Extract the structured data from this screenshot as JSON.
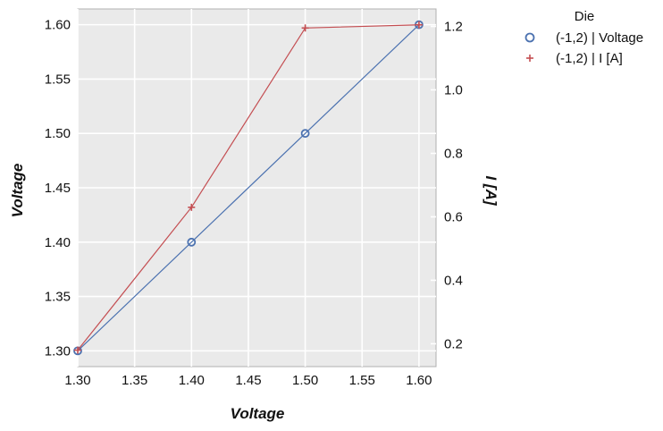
{
  "chart_data": {
    "type": "line",
    "xlabel": "Voltage",
    "ylabel": "Voltage",
    "y2label": "I [A]",
    "xlim": [
      1.3,
      1.615
    ],
    "ylim": [
      1.2855,
      1.6145
    ],
    "y2lim": [
      0.128,
      1.255
    ],
    "xticks": [
      "1.30",
      "1.35",
      "1.40",
      "1.45",
      "1.50",
      "1.55",
      "1.60"
    ],
    "yticks": [
      "1.30",
      "1.35",
      "1.40",
      "1.45",
      "1.50",
      "1.55",
      "1.60"
    ],
    "y2ticks": [
      "0.2",
      "0.4",
      "0.6",
      "0.8",
      "1.0",
      "1.2"
    ],
    "grid": true,
    "legend_title": "Die",
    "legend_position": "outside-top-right",
    "series": [
      {
        "name": "(-1,2) | Voltage",
        "axis": "left",
        "marker": "circle",
        "color": "#4c72b0",
        "x": [
          1.3,
          1.4,
          1.5,
          1.6
        ],
        "y": [
          1.3,
          1.4,
          1.5,
          1.6
        ]
      },
      {
        "name": "(-1,2) | I [A]",
        "axis": "right",
        "marker": "plus",
        "color": "#c44e52",
        "x": [
          1.3,
          1.4,
          1.5,
          1.6
        ],
        "y": [
          0.18,
          0.63,
          1.195,
          1.205
        ]
      }
    ]
  }
}
